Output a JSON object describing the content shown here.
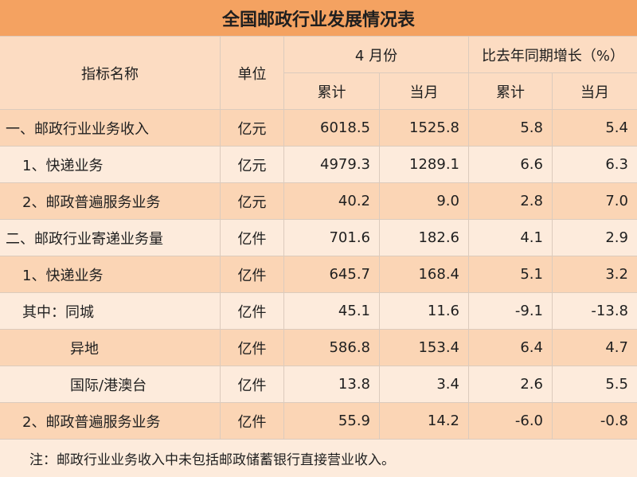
{
  "title": "全国邮政行业发展情况表",
  "header": {
    "indicator": "指标名称",
    "unit": "单位",
    "month_group": "4 月份",
    "growth_group": "比去年同期增长（%）",
    "sub": [
      "累计",
      "当月",
      "累计",
      "当月"
    ]
  },
  "rows": [
    {
      "label": "一、邮政行业业务收入",
      "unit": "亿元",
      "month_cumulative": "6018.5",
      "month_current": "1525.8",
      "growth_cumulative": "5.8",
      "growth_current": "5.4"
    },
    {
      "label": "1、快递业务",
      "unit": "亿元",
      "month_cumulative": "4979.3",
      "month_current": "1289.1",
      "growth_cumulative": "6.6",
      "growth_current": "6.3"
    },
    {
      "label": "2、邮政普遍服务业务",
      "unit": "亿元",
      "month_cumulative": "40.2",
      "month_current": "9.0",
      "growth_cumulative": "2.8",
      "growth_current": "7.0"
    },
    {
      "label": "二、邮政行业寄递业务量",
      "unit": "亿件",
      "month_cumulative": "701.6",
      "month_current": "182.6",
      "growth_cumulative": "4.1",
      "growth_current": "2.9"
    },
    {
      "label": "1、快递业务",
      "unit": "亿件",
      "month_cumulative": "645.7",
      "month_current": "168.4",
      "growth_cumulative": "5.1",
      "growth_current": "3.2"
    },
    {
      "label": "其中：同城",
      "unit": "亿件",
      "month_cumulative": "45.1",
      "month_current": "11.6",
      "growth_cumulative": "-9.1",
      "growth_current": "-13.8"
    },
    {
      "label": "异地",
      "unit": "亿件",
      "month_cumulative": "586.8",
      "month_current": "153.4",
      "growth_cumulative": "6.4",
      "growth_current": "4.7"
    },
    {
      "label": "国际/港澳台",
      "unit": "亿件",
      "month_cumulative": "13.8",
      "month_current": "3.4",
      "growth_cumulative": "2.6",
      "growth_current": "5.5"
    },
    {
      "label": "2、邮政普遍服务业务",
      "unit": "亿件",
      "month_cumulative": "55.9",
      "month_current": "14.2",
      "growth_cumulative": "-6.0",
      "growth_current": "-0.8"
    }
  ],
  "note": "注：邮政行业业务收入中未包括邮政储蓄银行直接营业收入。",
  "colors": {
    "title_bg": "#f4a261",
    "header_bg": "#fcdcc2",
    "row_dark": "#fbd5b5",
    "row_light": "#fdebdc"
  }
}
